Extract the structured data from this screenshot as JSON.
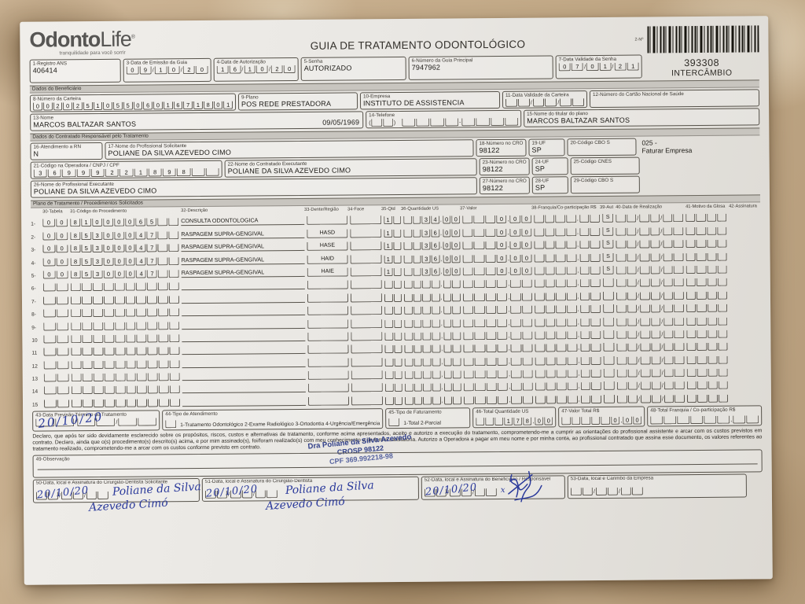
{
  "header": {
    "logo_part1": "Odonto",
    "logo_part2": "Life",
    "logo_reg": "®",
    "tagline": "tranquilidade para você sorrir",
    "title": "GUIA DE TRATAMENTO ODONTOLÓGICO",
    "form_no_label": "2-Nº",
    "guide_number": "393308",
    "guide_type": "INTERCÂMBIO"
  },
  "top": {
    "registro_ans": {
      "label": "1-Registro ANS",
      "value": "406414"
    },
    "emissao": {
      "label": "3-Data de Emissão da Guia",
      "comb": "09/10/20"
    },
    "autorizacao": {
      "label": "4-Data de Autorização",
      "comb": "16/10/20"
    },
    "senha": {
      "label": "5-Senha",
      "value": "AUTORIZADO"
    },
    "guia_principal": {
      "label": "6-Número da Guia Principal",
      "value": "7947962"
    },
    "validade_senha": {
      "label": "7-Data Validade da Senha",
      "comb": "07/01/21"
    }
  },
  "sections": {
    "beneficiario": "Dados do Beneficiário",
    "contratado": "Dados do Contratado Responsável pelo Tratamento",
    "plano": "Plano de Tratamento / Procedimentos Solicitados"
  },
  "beneficiario": {
    "carteira": {
      "label": "8-Número da Carteira",
      "comb": "00202510550601671801"
    },
    "plano": {
      "label": "9-Plano",
      "value": "POS REDE PRESTADORA"
    },
    "empresa": {
      "label": "10-Empresa",
      "value": "INSTITUTO DE ASSISTENCIA"
    },
    "validade_carteira": {
      "label": "11-Data Validade da Carteira",
      "comb": "  /  /  "
    },
    "cartao_sus": {
      "label": "12-Número do Cartão Nacional de Saúde",
      "value": " "
    },
    "nome": {
      "label": "13-Nome",
      "value": "MARCOS BALTAZAR SANTOS",
      "nascimento": "09/05/1969"
    },
    "telefone": {
      "label": "14-Telefone",
      "ddd": "(  )",
      "numero": "    -    "
    },
    "titular": {
      "label": "15-Nome do titular do plano",
      "value": "MARCOS BALTAZAR SANTOS"
    }
  },
  "contratado": {
    "rn": {
      "label": "16-Atendimento a RN",
      "value": "N"
    },
    "solicitante": {
      "label": "17-Nome do Profissional Solicitante",
      "value": "POLIANE DA SILVA AZEVEDO CIMO"
    },
    "cro1": {
      "label": "18-Número no CRO",
      "value": "98122"
    },
    "uf1": {
      "label": "19-UF",
      "value": "SP"
    },
    "cbo1": {
      "label": "20-Código CBO S",
      "value": " "
    },
    "nota": {
      "line1": "025 -",
      "line2": "Faturar Empresa"
    },
    "cnpj": {
      "label": "21-Código na Operadora / CNPJ / CPF",
      "comb": "36999221898  "
    },
    "executante_contratado": {
      "label": "22-Nome do Contratado Executante",
      "value": "POLIANE DA SILVA AZEVEDO CIMO"
    },
    "cro2": {
      "label": "23-Número no CRO",
      "value": "98122"
    },
    "uf2": {
      "label": "24-UF",
      "value": "SP"
    },
    "cnes": {
      "label": "25-Código CNES",
      "value": " "
    },
    "executante_profissional": {
      "label": "26-Nome do Profissional Executante",
      "value": "POLIANE DA SILVA AZEVEDO CIMO"
    },
    "cro3": {
      "label": "27-Número no CRO",
      "value": "98122"
    },
    "uf3": {
      "label": "28-UF",
      "value": "SP"
    },
    "cbo3": {
      "label": "29-Código CBO S",
      "value": " "
    }
  },
  "table": {
    "headers": {
      "h30": "30-Tabela",
      "h31": "31-Código do Procedimento",
      "h32": "32-Descrição",
      "h33": "33-Dente/Região",
      "h34": "34-Face",
      "h35": "35-Qtd",
      "h36": "36-Quantidade US",
      "h37": "37-Valor",
      "h38": "38-Franquia/Co-participação R$",
      "h39": "39-Aut",
      "h40": "40-Data de Realização",
      "h41": "41-Motivo da Glosa",
      "h42": "42-Assinatura"
    },
    "rows": [
      {
        "num": "1-",
        "tabela": "00",
        "codigo": "81000065  ",
        "desc": "CONSULTA ODONTOLOGICA",
        "dente": "",
        "face": "",
        "qtd": "1 ",
        "us": "  34,00",
        "valor": "   0,00",
        "franquia": "    ,  ",
        "aut": "S",
        "data_comb": "  /  /  ",
        "data_hw": "20/10/20",
        "glosa": "    ",
        "signed": true
      },
      {
        "num": "2-",
        "tabela": "00",
        "codigo": "85300047  ",
        "desc": "RASPAGEM SUPRA-GENGIVAL",
        "dente": "HASD",
        "face": "",
        "qtd": "1 ",
        "us": "  36,00",
        "valor": "   0,00",
        "franquia": "    ,  ",
        "aut": "S",
        "data_comb": "  /  /  ",
        "data_hw": "20/10/20",
        "glosa": "    ",
        "signed": true
      },
      {
        "num": "3-",
        "tabela": "00",
        "codigo": "85300047  ",
        "desc": "RASPAGEM SUPRA-GENGIVAL",
        "dente": "HASE",
        "face": "",
        "qtd": "1 ",
        "us": "  36,00",
        "valor": "   0,00",
        "franquia": "    ,  ",
        "aut": "S",
        "data_comb": "  /  /  ",
        "data_hw": "20/10/20",
        "glosa": "    ",
        "signed": true
      },
      {
        "num": "4-",
        "tabela": "00",
        "codigo": "85300047  ",
        "desc": "RASPAGEM SUPRA-GENGIVAL",
        "dente": "HAID",
        "face": "",
        "qtd": "1 ",
        "us": "  36,00",
        "valor": "   0,00",
        "franquia": "    ,  ",
        "aut": "S",
        "data_comb": "  /  /  ",
        "data_hw": "20/10/20",
        "glosa": "    ",
        "signed": true
      },
      {
        "num": "5-",
        "tabela": "00",
        "codigo": "85300047  ",
        "desc": "RASPAGEM SUPRA-GENGIVAL",
        "dente": "HAIE",
        "face": "",
        "qtd": "1 ",
        "us": "  36,00",
        "valor": "   0,00",
        "franquia": "    ,  ",
        "aut": "S",
        "data_comb": "  /  /  ",
        "data_hw": "20/10/20",
        "glosa": "    ",
        "signed": true
      },
      {
        "num": "6-",
        "tabela": "  ",
        "codigo": "          ",
        "desc": " ",
        "dente": "",
        "face": "",
        "qtd": "  ",
        "us": "    ,  ",
        "valor": "    ,  ",
        "franquia": "    ,  ",
        "aut": "",
        "data_comb": "  /  /  ",
        "data_hw": "",
        "glosa": "    ",
        "signed": false
      },
      {
        "num": "7-",
        "tabela": "  ",
        "codigo": "          ",
        "desc": " ",
        "dente": "",
        "face": "",
        "qtd": "  ",
        "us": "    ,  ",
        "valor": "    ,  ",
        "franquia": "    ,  ",
        "aut": "",
        "data_comb": "  /  /  ",
        "data_hw": "",
        "glosa": "    ",
        "signed": false
      },
      {
        "num": "8-",
        "tabela": "  ",
        "codigo": "          ",
        "desc": " ",
        "dente": "",
        "face": "",
        "qtd": "  ",
        "us": "    ,  ",
        "valor": "    ,  ",
        "franquia": "    ,  ",
        "aut": "",
        "data_comb": "  /  /  ",
        "data_hw": "",
        "glosa": "    ",
        "signed": false
      },
      {
        "num": "9-",
        "tabela": "  ",
        "codigo": "          ",
        "desc": " ",
        "dente": "",
        "face": "",
        "qtd": "  ",
        "us": "    ,  ",
        "valor": "    ,  ",
        "franquia": "    ,  ",
        "aut": "",
        "data_comb": "  /  /  ",
        "data_hw": "",
        "glosa": "    ",
        "signed": false
      },
      {
        "num": "10",
        "tabela": "  ",
        "codigo": "          ",
        "desc": " ",
        "dente": "",
        "face": "",
        "qtd": "  ",
        "us": "    ,  ",
        "valor": "    ,  ",
        "franquia": "    ,  ",
        "aut": "",
        "data_comb": "  /  /  ",
        "data_hw": "",
        "glosa": "    ",
        "signed": false
      },
      {
        "num": "11",
        "tabela": "  ",
        "codigo": "          ",
        "desc": " ",
        "dente": "",
        "face": "",
        "qtd": "  ",
        "us": "    ,  ",
        "valor": "    ,  ",
        "franquia": "    ,  ",
        "aut": "",
        "data_comb": "  /  /  ",
        "data_hw": "",
        "glosa": "    ",
        "signed": false
      },
      {
        "num": "12",
        "tabela": "  ",
        "codigo": "          ",
        "desc": " ",
        "dente": "",
        "face": "",
        "qtd": "  ",
        "us": "    ,  ",
        "valor": "    ,  ",
        "franquia": "    ,  ",
        "aut": "",
        "data_comb": "  /  /  ",
        "data_hw": "",
        "glosa": "    ",
        "signed": false
      },
      {
        "num": "13",
        "tabela": "  ",
        "codigo": "          ",
        "desc": " ",
        "dente": "",
        "face": "",
        "qtd": "  ",
        "us": "    ,  ",
        "valor": "    ,  ",
        "franquia": "    ,  ",
        "aut": "",
        "data_comb": "  /  /  ",
        "data_hw": "",
        "glosa": "    ",
        "signed": false
      },
      {
        "num": "14",
        "tabela": "  ",
        "codigo": "          ",
        "desc": " ",
        "dente": "",
        "face": "",
        "qtd": "  ",
        "us": "    ,  ",
        "valor": "    ,  ",
        "franquia": "    ,  ",
        "aut": "",
        "data_comb": "  /  /  ",
        "data_hw": "",
        "glosa": "    ",
        "signed": false
      },
      {
        "num": "15",
        "tabela": "  ",
        "codigo": "          ",
        "desc": " ",
        "dente": "",
        "face": "",
        "qtd": "  ",
        "us": "    ,  ",
        "valor": "    ,  ",
        "franquia": "    ,  ",
        "aut": "",
        "data_comb": "  /  /  ",
        "data_hw": "",
        "glosa": "    ",
        "signed": false
      }
    ]
  },
  "totais": {
    "previsao": {
      "label": "43-Data Previsão Término do Tratamento",
      "comb": "  /  /  ",
      "hw": "20/10/20"
    },
    "tipo_atendimento": {
      "label": "44-Tipo de Atendimento",
      "comb": " ",
      "options": "1-Tratamento Odontológico  2-Exame Radiológico  3-Ortodontia  4-Urgência/Emergência"
    },
    "tipo_faturamento": {
      "label": "45-Tipo de Faturamento",
      "comb": " ",
      "options": "1-Total  2-Parcial"
    },
    "total_us": {
      "label": "46-Total Quantidade US",
      "comb": "   178,00"
    },
    "valor_total": {
      "label": "47-Valor Total R$",
      "comb": "     0,00"
    },
    "total_franquia": {
      "label": "48-Total Franquia / Co-participação R$",
      "comb": "      ,  "
    }
  },
  "declaracao": "Declaro, que após ter sido devidamente esclarecido sobre os propósitos, riscos, custos e alternativas de tratamento, conforme acima apresentados, aceito e autorizo a execução do tratamento, comprometendo-me a cumprir as orientações do profissional assistente e arcar com os custos previstos em contrato. Declaro, ainda que o(s) procedimento(s) descrito(s) acima, e por mim assinado(s), foi/foram realizado(s) com meu conhecimento e de forma satisfatória. Autorizo a Operadora a pagar em meu nome e por minha conta, ao profissional contratado que assina esse documento, os valores referentes ao tratamento realizado, comprometendo-me a arcar com os custos conforme previsto em contrato.",
  "stamp": {
    "line1": "Dra Poliane da Silva Azevedo",
    "line2": "CROSP 98122",
    "line3": "CPF 369.992218-98"
  },
  "observacao": {
    "label": "49-Observação"
  },
  "assinaturas": {
    "solicitante": {
      "label": "50-Data, local e Assinatura do Cirurgião-Dentista Solicitante",
      "comb": "  /  /  ",
      "date_hw": "20/10/20",
      "sig1": "Poliane da Silva",
      "sig2": "Azevedo Cimó"
    },
    "executante": {
      "label": "51-Data, local e Assinatura do Cirurgião-Dentista",
      "comb": "  /  /  ",
      "date_hw": "20/10/20",
      "sig1": "Poliane da Silva",
      "sig2": "Azevedo Cimó"
    },
    "beneficiario": {
      "label": "52-Data, local e Assinatura do Beneficiário / Responsável",
      "comb": "  /  /  ",
      "date_hw": "20/10/20",
      "mark": "x"
    },
    "empresa": {
      "label": "53-Data, local e Carimbo da Empresa",
      "comb": "  /  /  "
    }
  }
}
